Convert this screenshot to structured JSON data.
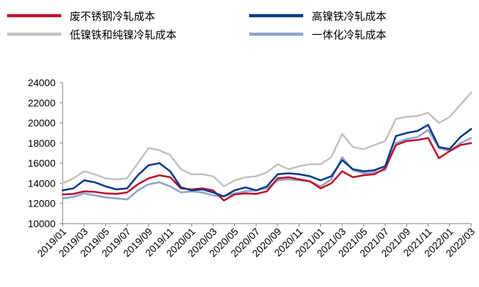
{
  "chart_data": {
    "type": "line",
    "title": "",
    "xlabel": "",
    "ylabel": "",
    "ylim": [
      10000,
      24000
    ],
    "yticks": [
      10000,
      12000,
      14000,
      16000,
      18000,
      20000,
      22000,
      24000
    ],
    "xticks": [
      "2019/01",
      "2019/03",
      "2019/05",
      "2019/07",
      "2019/09",
      "2019/11",
      "2020/01",
      "2020/03",
      "2020/05",
      "2020/07",
      "2020/09",
      "2020/11",
      "2021/01",
      "2021/03",
      "2021/05",
      "2021/07",
      "2021/09",
      "2021/11",
      "2022/01",
      "2022/03"
    ],
    "x": [
      "2019/01",
      "2019/02",
      "2019/03",
      "2019/04",
      "2019/05",
      "2019/06",
      "2019/07",
      "2019/08",
      "2019/09",
      "2019/10",
      "2019/11",
      "2019/12",
      "2020/01",
      "2020/02",
      "2020/03",
      "2020/04",
      "2020/05",
      "2020/06",
      "2020/07",
      "2020/08",
      "2020/09",
      "2020/10",
      "2020/11",
      "2020/12",
      "2021/01",
      "2021/02",
      "2021/03",
      "2021/04",
      "2021/05",
      "2021/06",
      "2021/07",
      "2021/08",
      "2021/09",
      "2021/10",
      "2021/11",
      "2021/12",
      "2022/01",
      "2022/02",
      "2022/03"
    ],
    "legend_position": "top",
    "grid": false,
    "series": [
      {
        "name": "废不锈钢冷轧成本",
        "color": "#c0142a",
        "values": [
          12900,
          12950,
          13200,
          13150,
          13000,
          12950,
          13100,
          13900,
          14500,
          14800,
          14600,
          13500,
          13400,
          13500,
          13300,
          12300,
          12900,
          13000,
          12950,
          13200,
          14500,
          14600,
          14400,
          14200,
          13500,
          14000,
          15200,
          14600,
          14800,
          14900,
          15500,
          17800,
          18200,
          18300,
          18500,
          16500,
          17200,
          17800,
          18000
        ]
      },
      {
        "name": "高镍铁冷轧成本",
        "color": "#0a3a8c",
        "values": [
          13300,
          13500,
          14300,
          14100,
          13700,
          13400,
          13500,
          14800,
          15800,
          16000,
          15200,
          13600,
          13300,
          13400,
          13100,
          12700,
          13300,
          13600,
          13300,
          13700,
          14900,
          15000,
          14900,
          14700,
          14300,
          14700,
          16300,
          15400,
          15200,
          15300,
          15700,
          18700,
          19000,
          19200,
          19800,
          17600,
          17400,
          18600,
          19400
        ]
      },
      {
        "name": "低镍铁和纯镍冷轧成本",
        "color": "#c3c3c3",
        "values": [
          14000,
          14500,
          15200,
          14900,
          14500,
          14400,
          14500,
          16000,
          17500,
          17300,
          16800,
          15400,
          14900,
          14900,
          14700,
          13700,
          14300,
          14600,
          14700,
          15100,
          15900,
          15400,
          15700,
          15900,
          15900,
          16600,
          18900,
          17600,
          17400,
          17800,
          18200,
          20400,
          20600,
          20700,
          21000,
          20000,
          20600,
          21800,
          23000
        ]
      },
      {
        "name": "一体化冷轧成本",
        "color": "#8fa5cc",
        "values": [
          12500,
          12650,
          13000,
          12800,
          12600,
          12500,
          12400,
          13300,
          13900,
          14100,
          13700,
          13100,
          13200,
          13100,
          12800,
          12700,
          13000,
          13200,
          13300,
          13500,
          14300,
          14400,
          14300,
          14200,
          13700,
          14400,
          16600,
          15300,
          15000,
          15100,
          15300,
          18000,
          18400,
          18600,
          19300,
          17500,
          17200,
          18000,
          18500
        ]
      }
    ]
  }
}
